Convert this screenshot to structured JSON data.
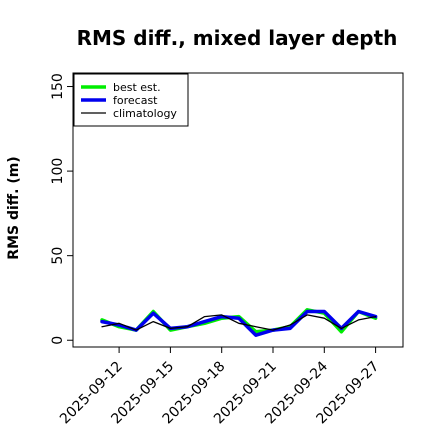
{
  "chart_data": {
    "type": "line",
    "title": "RMS diff., mixed layer depth",
    "xlabel": "",
    "ylabel": "RMS diff. (m)",
    "ylim": [
      -4,
      158
    ],
    "yticks": [
      0,
      50,
      100,
      150
    ],
    "x_dates": [
      "2025-09-11",
      "2025-09-12",
      "2025-09-13",
      "2025-09-14",
      "2025-09-15",
      "2025-09-16",
      "2025-09-17",
      "2025-09-18",
      "2025-09-19",
      "2025-09-20",
      "2025-09-21",
      "2025-09-22",
      "2025-09-23",
      "2025-09-24",
      "2025-09-25",
      "2025-09-26",
      "2025-09-27"
    ],
    "xticks": [
      {
        "label": "2025-09-12",
        "color": "#000000"
      },
      {
        "label": "2025-09-15",
        "color": "#000000"
      },
      {
        "label": "2025-09-18",
        "color": "#228B22"
      },
      {
        "label": "2025-09-21",
        "color": "#000000"
      },
      {
        "label": "2025-09-24",
        "color": "#000000"
      },
      {
        "label": "2025-09-27",
        "color": "#000000"
      }
    ],
    "series": [
      {
        "name": "best est.",
        "color": "#00ee00",
        "width": 3.5,
        "values": [
          12,
          8,
          6,
          17,
          6,
          8,
          10,
          13,
          14,
          5,
          6,
          8,
          18,
          16,
          5,
          17,
          13
        ]
      },
      {
        "name": "forecast",
        "color": "#0000ee",
        "width": 3.5,
        "values": [
          11,
          9,
          6,
          16,
          7,
          8,
          11,
          14,
          13,
          3,
          6,
          7,
          17,
          17,
          7,
          17,
          14
        ]
      },
      {
        "name": "climatology",
        "color": "#000000",
        "width": 1.3,
        "values": [
          8,
          10,
          6,
          11,
          7,
          8,
          14,
          15,
          10,
          8,
          6,
          9,
          15,
          13,
          7,
          12,
          14
        ]
      }
    ],
    "legend_position": "top-left",
    "grid": false
  }
}
